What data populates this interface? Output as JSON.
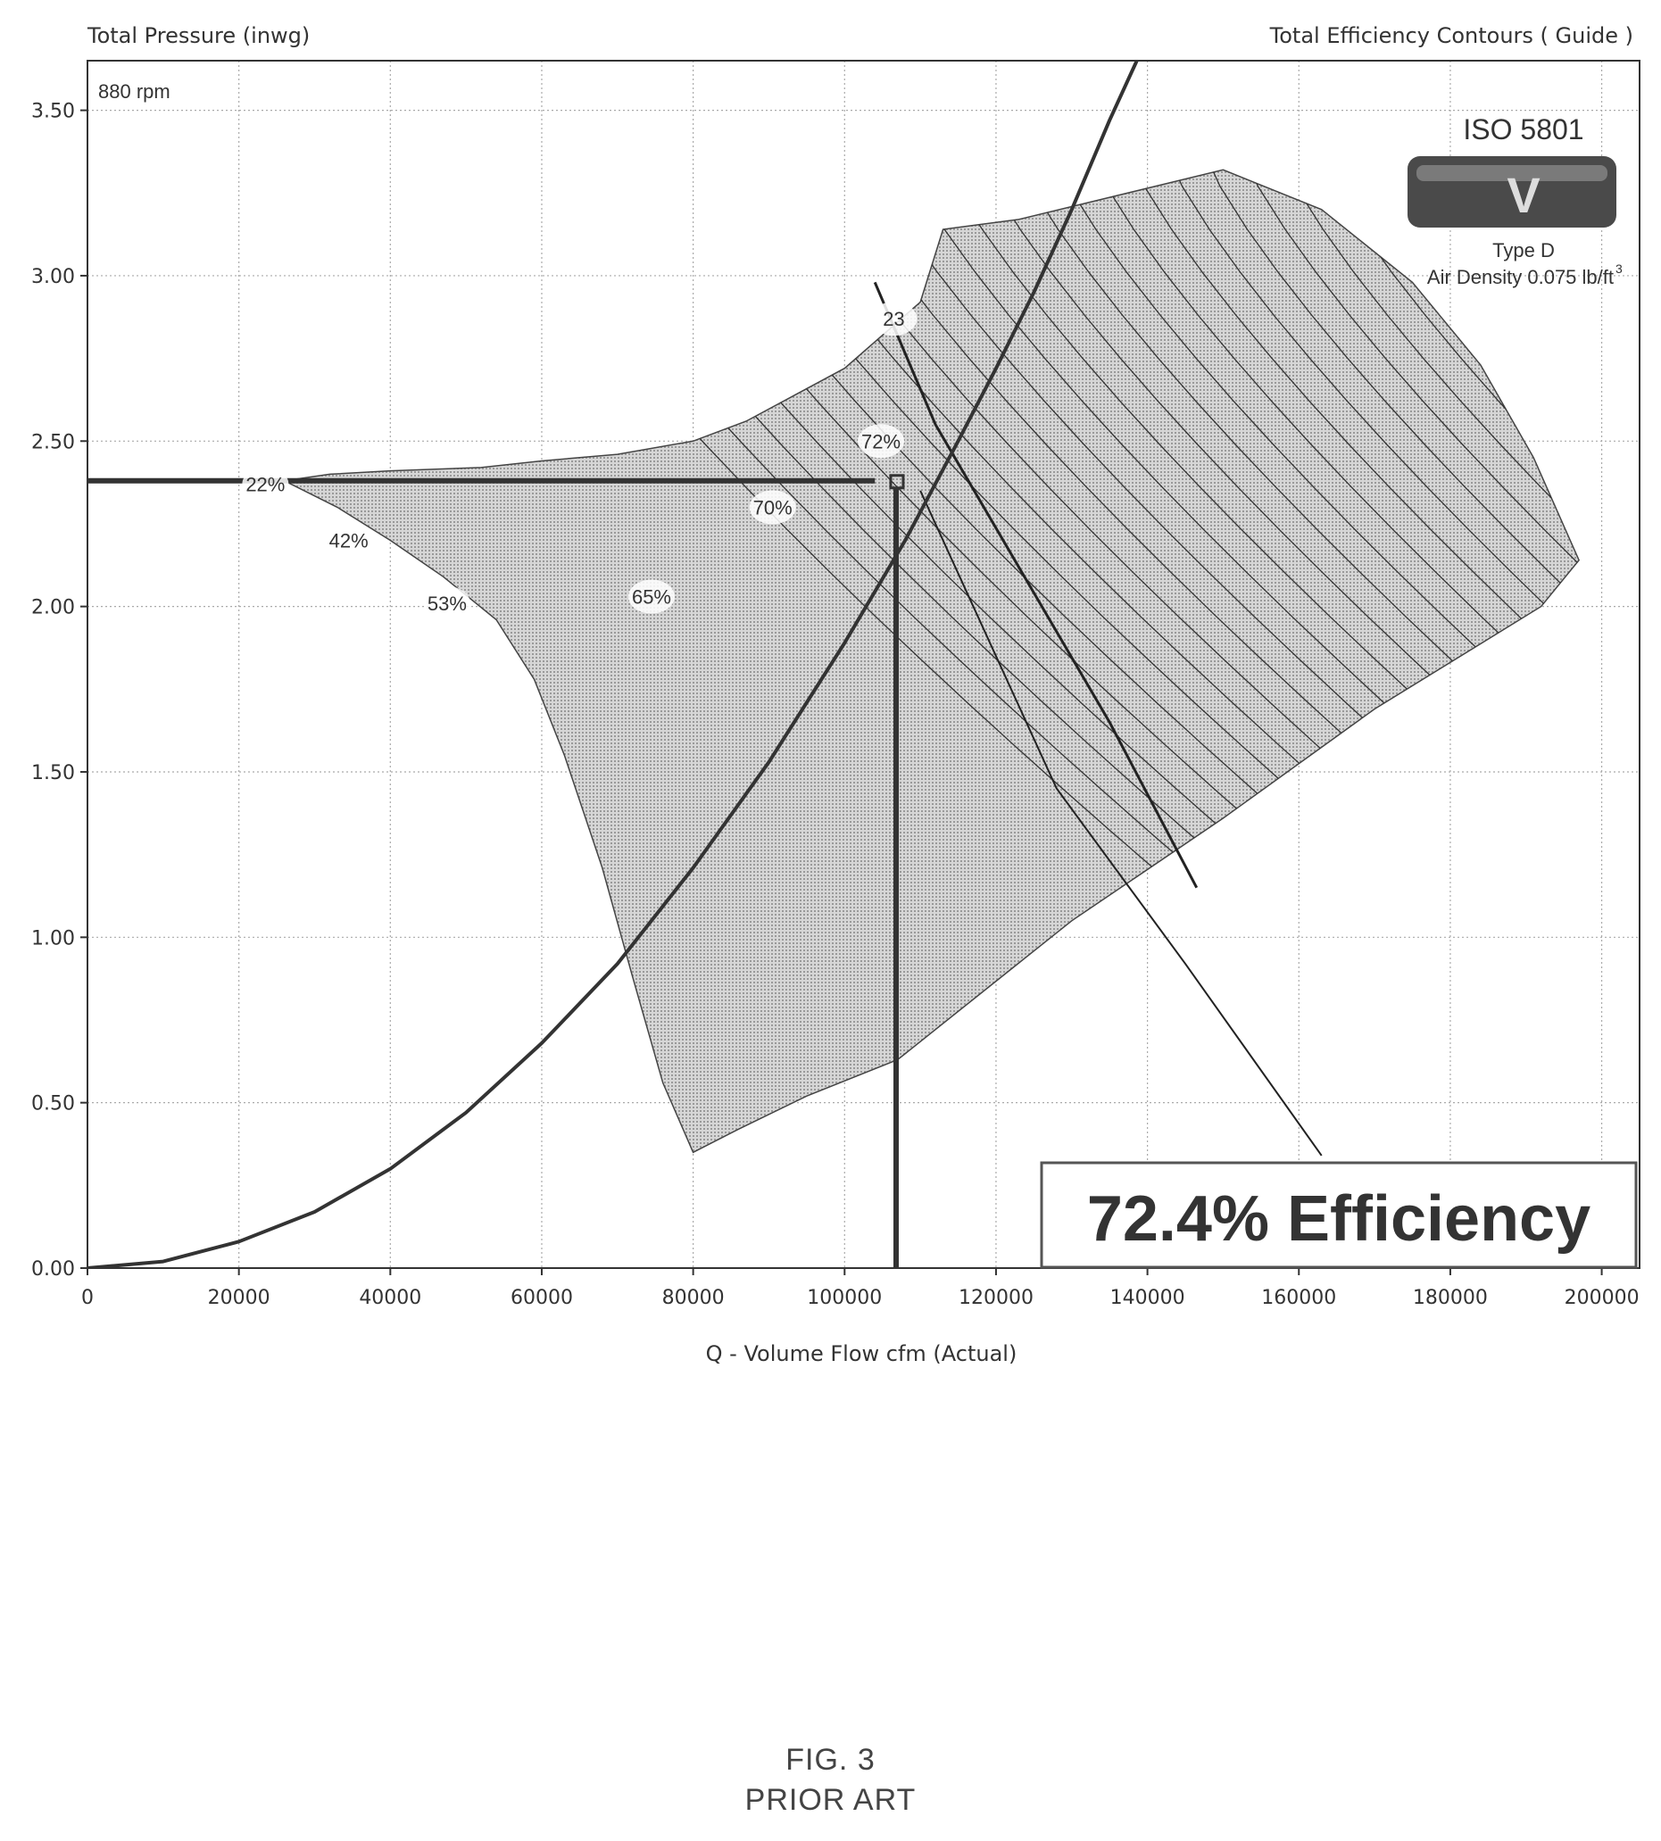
{
  "header": {
    "left_title": "Total Pressure (inwg)",
    "right_title": "Total Efficiency Contours ( Guide )"
  },
  "speed_label": "880 rpm",
  "badge": {
    "standard": "ISO 5801",
    "letter": "V",
    "type": "Type D",
    "density": "Air Density 0.075 lb/ft",
    "density_sup": "3"
  },
  "result_box": "72.4% Efficiency",
  "caption": {
    "line1": "FIG. 3",
    "line2": "PRIOR ART"
  },
  "colors": {
    "contour_fill": "#bdbdbd",
    "line": "#333333",
    "grid": "#aaaaaa",
    "box_border": "#555555"
  },
  "chart_data": {
    "type": "line",
    "xlabel": "Q - Volume Flow cfm (Actual)",
    "ylabel": "Total Pressure (inwg)",
    "xlim": [
      0,
      205000
    ],
    "ylim": [
      0,
      3.65
    ],
    "x_ticks": [
      0,
      20000,
      40000,
      60000,
      80000,
      100000,
      120000,
      140000,
      160000,
      180000,
      200000
    ],
    "x_tick_labels": [
      "0",
      "20000",
      "40000",
      "60000",
      "80000",
      "100000",
      "120000",
      "140000",
      "160000",
      "180000",
      "200000"
    ],
    "y_ticks": [
      0,
      0.5,
      1.0,
      1.5,
      2.0,
      2.5,
      3.0,
      3.5
    ],
    "y_tick_labels": [
      "0.00",
      "0.50",
      "1.00",
      "1.50",
      "2.00",
      "2.50",
      "3.00",
      "3.50"
    ],
    "grid": true,
    "series": [
      {
        "role": "system-curve",
        "x": [
          0,
          10000,
          20000,
          30000,
          40000,
          50000,
          60000,
          70000,
          80000,
          90000,
          100000,
          108000,
          115000,
          120000,
          125000,
          130000,
          135000,
          140000
        ],
        "y": [
          0,
          0.02,
          0.08,
          0.17,
          0.3,
          0.47,
          0.68,
          0.92,
          1.21,
          1.53,
          1.89,
          2.2,
          2.5,
          2.72,
          2.95,
          3.2,
          3.47,
          3.72
        ]
      },
      {
        "role": "operating-pressure",
        "x": [
          0,
          104000
        ],
        "y": [
          2.38,
          2.38
        ]
      },
      {
        "role": "operating-flow",
        "x": [
          106800,
          106800
        ],
        "y": [
          0,
          2.36
        ]
      }
    ],
    "envelope": {
      "x": [
        26000,
        32000,
        40000,
        52000,
        60000,
        70000,
        80000,
        87000,
        100000,
        110000,
        113000,
        123000,
        150000,
        163000,
        175000,
        184000,
        191000,
        197000,
        192000,
        170000,
        150000,
        130000,
        107000,
        95000,
        86000,
        80000,
        76000,
        72000,
        68000,
        63000,
        59000,
        54000,
        47000,
        40000,
        33000
      ],
      "y": [
        2.38,
        2.4,
        2.41,
        2.42,
        2.44,
        2.46,
        2.5,
        2.56,
        2.72,
        2.92,
        3.14,
        3.17,
        3.32,
        3.2,
        2.98,
        2.73,
        2.45,
        2.14,
        2.0,
        1.69,
        1.36,
        1.05,
        0.63,
        0.52,
        0.42,
        0.35,
        0.56,
        0.88,
        1.21,
        1.55,
        1.78,
        1.96,
        2.09,
        2.2,
        2.3
      ]
    },
    "efficiency_labels": [
      {
        "text": "22%",
        "x": 23500,
        "y": 2.37
      },
      {
        "text": "42%",
        "x": 34500,
        "y": 2.2
      },
      {
        "text": "53%",
        "x": 47500,
        "y": 2.01
      },
      {
        "text": "65%",
        "x": 74500,
        "y": 2.03
      },
      {
        "text": "70%",
        "x": 90500,
        "y": 2.3
      },
      {
        "text": "72%",
        "x": 104800,
        "y": 2.5
      },
      {
        "text": "23",
        "x": 106500,
        "y": 2.87
      }
    ],
    "operating_point": {
      "flow": 106800,
      "pressure": 2.38,
      "efficiency": "72.4%"
    }
  }
}
